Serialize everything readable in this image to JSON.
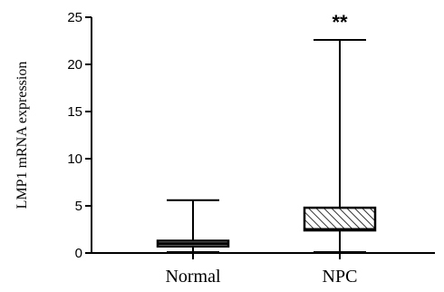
{
  "chart_data": {
    "type": "box",
    "title": "",
    "xlabel": "",
    "ylabel": "LMP1 mRNA expression",
    "ylim": [
      0,
      25
    ],
    "yticks": [
      0,
      5,
      10,
      15,
      20,
      25
    ],
    "grid": false,
    "categories": [
      "Normal",
      "NPC"
    ],
    "boxes": [
      {
        "category": "Normal",
        "min": 0.1,
        "q1": 0.7,
        "median": 1.0,
        "q3": 1.3,
        "max": 5.6,
        "fill": "#ffffff",
        "pattern": "none"
      },
      {
        "category": "NPC",
        "min": 0.1,
        "q1": 2.4,
        "median": 2.5,
        "q3": 4.8,
        "max": 22.6,
        "fill": "#ffffff",
        "pattern": "diagonal-hatch"
      }
    ],
    "annotations": [
      {
        "category": "NPC",
        "text": "**"
      }
    ]
  }
}
